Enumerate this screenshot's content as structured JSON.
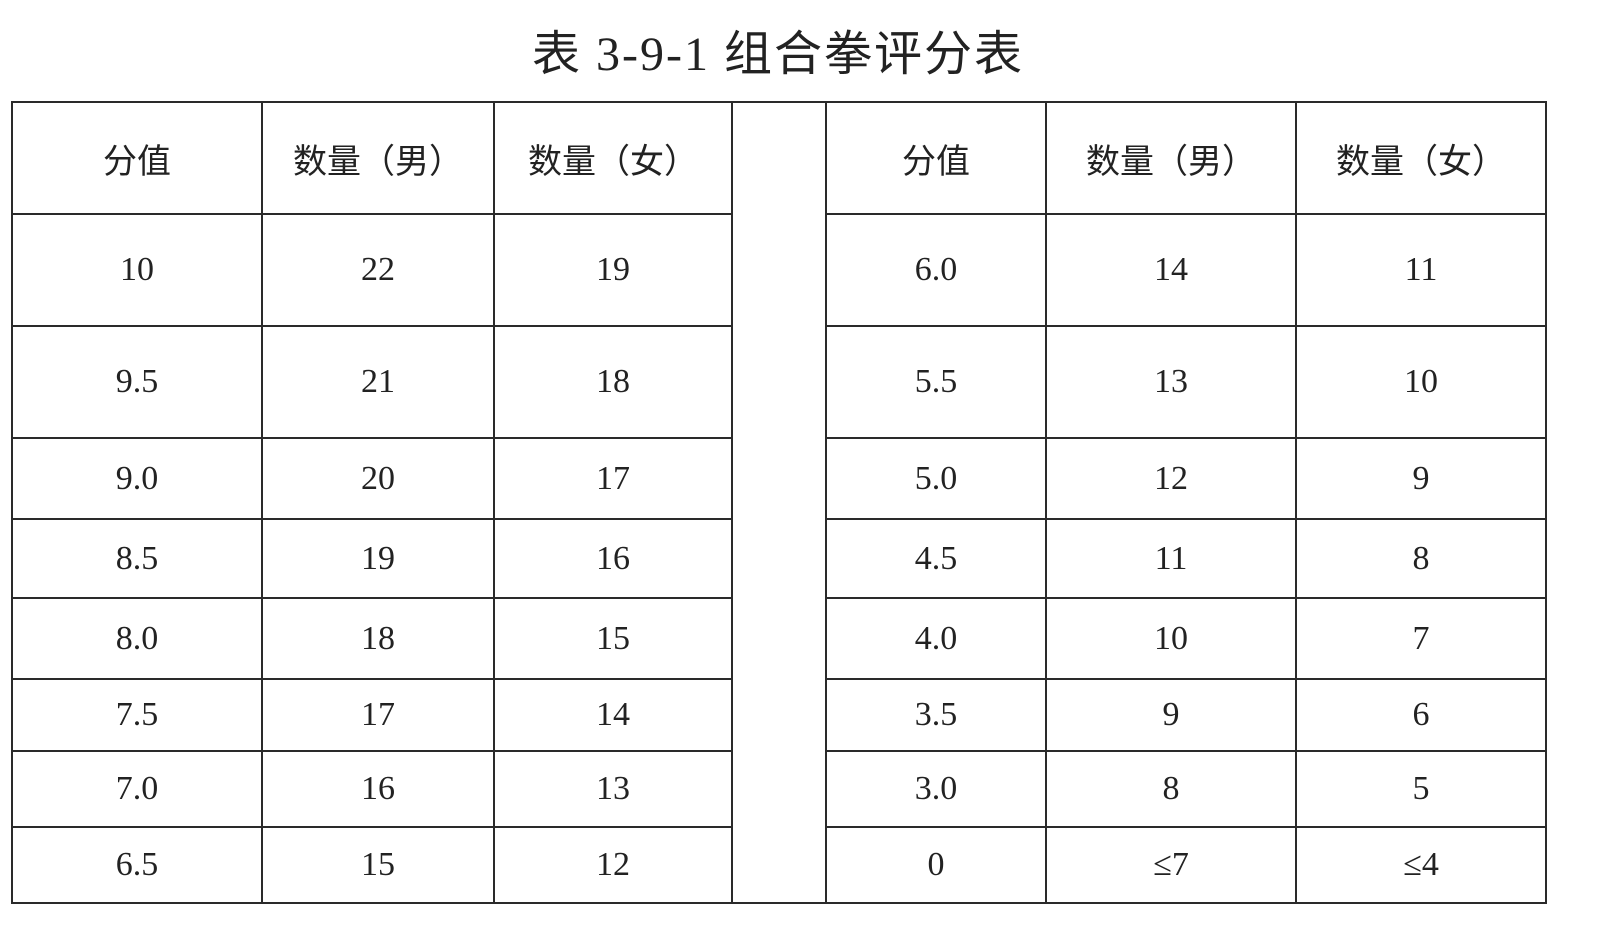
{
  "title": "表 3-9-1   组合拳评分表",
  "headers": [
    "分值",
    "数量（男）",
    "数量（女）",
    "分值",
    "数量（男）",
    "数量（女）"
  ],
  "left_rows": [
    [
      "10",
      "22",
      "19"
    ],
    [
      "9.5",
      "21",
      "18"
    ],
    [
      "9.0",
      "20",
      "17"
    ],
    [
      "8.5",
      "19",
      "16"
    ],
    [
      "8.0",
      "18",
      "15"
    ],
    [
      "7.5",
      "17",
      "14"
    ],
    [
      "7.0",
      "16",
      "13"
    ],
    [
      "6.5",
      "15",
      "12"
    ]
  ],
  "right_rows": [
    [
      "6.0",
      "14",
      "11"
    ],
    [
      "5.5",
      "13",
      "10"
    ],
    [
      "5.0",
      "12",
      "9"
    ],
    [
      "4.5",
      "11",
      "8"
    ],
    [
      "4.0",
      "10",
      "7"
    ],
    [
      "3.5",
      "9",
      "6"
    ],
    [
      "3.0",
      "8",
      "5"
    ],
    [
      "0",
      "≤7",
      "≤4"
    ]
  ]
}
